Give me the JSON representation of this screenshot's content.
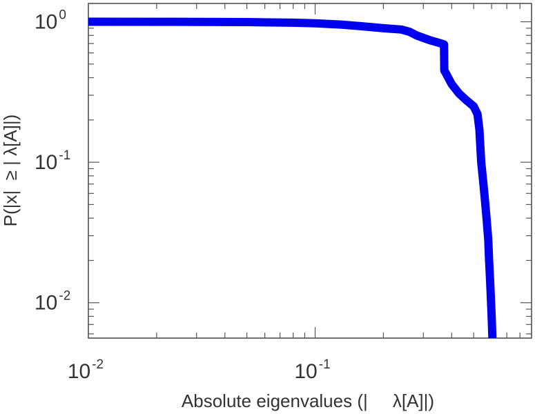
{
  "chart_data": {
    "type": "line",
    "xlabel": "Absolute eigenvalues (|     λ[A]|)",
    "ylabel": "P(|x|  ≥ | λ[A]|)",
    "x_scale": "log",
    "y_scale": "log",
    "xlim": [
      0.01,
      0.9
    ],
    "ylim": [
      0.0056,
      1.35
    ],
    "x_ticks": [
      {
        "value": 0.01,
        "base": "10",
        "exp": "-2"
      },
      {
        "value": 0.1,
        "base": "10",
        "exp": "-1"
      }
    ],
    "y_ticks": [
      {
        "value": 1,
        "base": "10",
        "exp": "0"
      },
      {
        "value": 0.1,
        "base": "10",
        "exp": "-1"
      },
      {
        "value": 0.01,
        "base": "10",
        "exp": "-2"
      }
    ],
    "grid": false,
    "series": [
      {
        "color": "#0000ee",
        "x": [
          0.01,
          0.02,
          0.05,
          0.08,
          0.1,
          0.13,
          0.16,
          0.2,
          0.24,
          0.26,
          0.28,
          0.32,
          0.36,
          0.37,
          0.371,
          0.38,
          0.4,
          0.43,
          0.46,
          0.5,
          0.52,
          0.53,
          0.535,
          0.54,
          0.55,
          0.56,
          0.57,
          0.58,
          0.585,
          0.59,
          0.595,
          0.6,
          0.605
        ],
        "y": [
          1.0,
          0.999,
          0.995,
          0.985,
          0.975,
          0.955,
          0.93,
          0.9,
          0.88,
          0.85,
          0.8,
          0.74,
          0.7,
          0.69,
          0.45,
          0.42,
          0.36,
          0.31,
          0.28,
          0.25,
          0.22,
          0.17,
          0.13,
          0.1,
          0.075,
          0.055,
          0.04,
          0.028,
          0.02,
          0.015,
          0.011,
          0.008,
          0.0056
        ]
      }
    ]
  }
}
